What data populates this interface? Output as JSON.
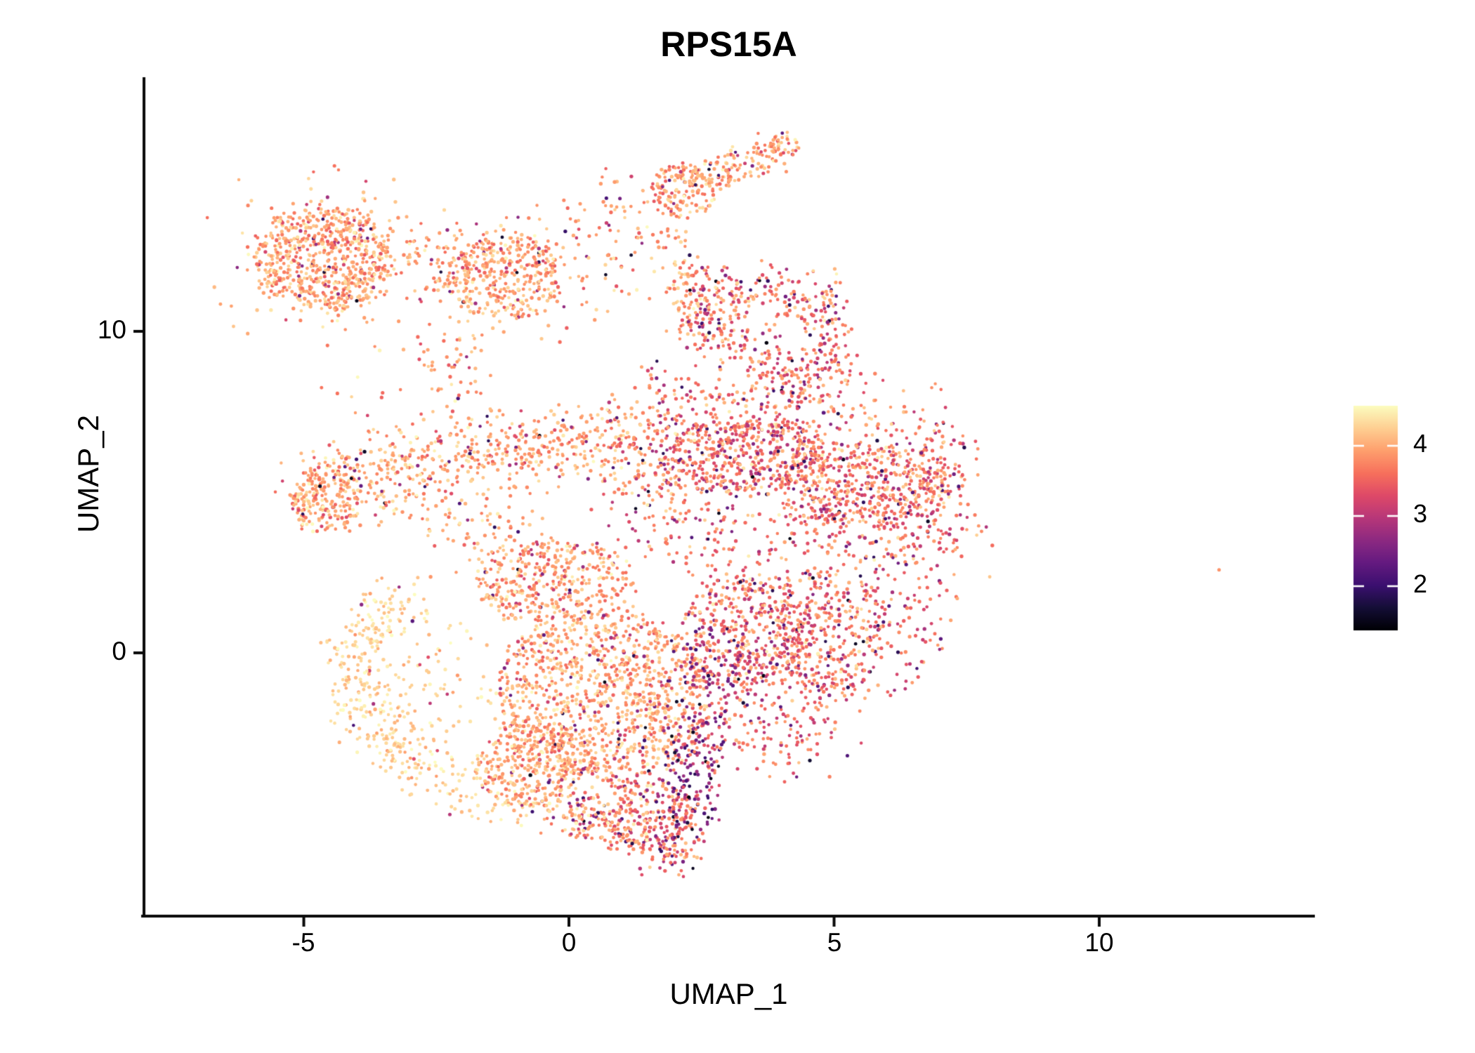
{
  "title": "RPS15A",
  "axes": {
    "x_label": "UMAP_1",
    "y_label": "UMAP_2",
    "x_ticks": [
      -5,
      0,
      5,
      10
    ],
    "x_tick_labels": [
      "-5",
      "0",
      "5",
      "10"
    ],
    "y_ticks": [
      10,
      0
    ],
    "y_tick_labels": [
      "10",
      "0"
    ],
    "xlim": [
      -8.0,
      14.0
    ],
    "ylim": [
      -8.2,
      17.9
    ]
  },
  "colorbar": {
    "ticks": [
      4,
      3,
      2
    ],
    "tick_labels": [
      "4",
      "3",
      "2"
    ],
    "vmin": 1.37,
    "vmax": 4.57,
    "palette": "magma",
    "stops": [
      "#000004",
      "#140e36",
      "#3b0f70",
      "#641a80",
      "#8c2981",
      "#b73779",
      "#de4968",
      "#f7705c",
      "#fe9f6d",
      "#fecf92",
      "#fcfdbf"
    ]
  },
  "chart_data": {
    "type": "scatter",
    "title": "RPS15A",
    "xlabel": "UMAP_1",
    "ylabel": "UMAP_2",
    "xlim": [
      -8.0,
      14.0
    ],
    "ylim": [
      -8.2,
      17.9
    ],
    "legend_position": "right",
    "grid": false,
    "point_radius_px": 2.35,
    "expression_color_range": [
      1.37,
      4.57
    ],
    "value_profiles": {
      "hi": {
        "mean": 3.95,
        "sd": 0.28,
        "p_mid": 0.055,
        "p_low": 0.018,
        "p_vlow": 0.005,
        "p_hi": 0.0,
        "clip_hi": 4.55
      },
      "mid": {
        "mean": 3.7,
        "sd": 0.35,
        "p_mid": 0.17,
        "p_low": 0.05,
        "p_vlow": 0.01,
        "p_hi": 0.0,
        "clip_hi": 4.5
      },
      "pale": {
        "mean": 4.25,
        "sd": 0.18,
        "p_mid": 0.03,
        "p_low": 0.004,
        "p_vlow": 0.0,
        "p_hi": 0.0,
        "clip_hi": 4.57
      },
      "dark": {
        "mean": 2.6,
        "sd": 0.5,
        "p_mid": 0.0,
        "p_low": 0.0,
        "p_vlow": 0.04,
        "p_hi": 0.2,
        "clip_hi": 3.95
      }
    },
    "clusters": [
      {
        "name": "topleft-core",
        "shape": "disc",
        "cx": -4.61,
        "cy": 12.27,
        "rx": 1.26,
        "ry": 1.64,
        "n": 620,
        "profile": "hi"
      },
      {
        "name": "topleft-fringe",
        "shape": "gauss",
        "cx": -4.61,
        "cy": 12.27,
        "sx": 1.26,
        "sy": 1.53,
        "n": 150,
        "profile": "hi"
      },
      {
        "name": "topleft-tail",
        "shape": "gauss",
        "cx": -3.97,
        "cy": 8.08,
        "sx": 0.53,
        "sy": 1.31,
        "n": 12,
        "profile": "hi"
      },
      {
        "name": "bridge",
        "shape": "path",
        "pts": [
          [
            -2.98,
            12.55
          ],
          [
            -1.46,
            12.01
          ]
        ],
        "jx": 0.4,
        "jy": 0.66,
        "n": 100,
        "profile": "hi"
      },
      {
        "name": "midtop-core",
        "shape": "disc",
        "cx": -1.19,
        "cy": 11.68,
        "rx": 1.06,
        "ry": 1.35,
        "n": 300,
        "profile": "hi"
      },
      {
        "name": "midtop-fringe",
        "shape": "gauss",
        "cx": -1.19,
        "cy": 11.68,
        "sx": 0.93,
        "sy": 1.2,
        "n": 80,
        "profile": "hi"
      },
      {
        "name": "midtop-to-hook",
        "shape": "gauss",
        "cx": 0.93,
        "cy": 13.1,
        "sx": 0.79,
        "sy": 1.31,
        "n": 90,
        "profile": "hi"
      },
      {
        "name": "hook-lobe",
        "shape": "disc",
        "cx": 2.15,
        "cy": 14.37,
        "rx": 0.6,
        "ry": 0.87,
        "n": 150,
        "profile": "hi"
      },
      {
        "name": "hook-arm",
        "shape": "path",
        "pts": [
          [
            2.58,
            14.8
          ],
          [
            3.95,
            15.68
          ]
        ],
        "jx": 0.21,
        "jy": 0.35,
        "n": 110,
        "profile": "hi"
      },
      {
        "name": "hook-tip",
        "shape": "disc",
        "cx": 4.08,
        "cy": 15.83,
        "rx": 0.29,
        "ry": 0.39,
        "n": 35,
        "profile": "hi"
      },
      {
        "name": "hook-drip",
        "shape": "path",
        "pts": [
          [
            1.85,
            13.1
          ],
          [
            2.32,
            10.04
          ]
        ],
        "jx": 0.24,
        "jy": 0.39,
        "n": 50,
        "profile": "hi"
      },
      {
        "name": "drip-pool",
        "shape": "gauss",
        "cx": 2.65,
        "cy": 10.37,
        "sx": 0.46,
        "sy": 0.55,
        "n": 40,
        "profile": "hi"
      },
      {
        "name": "loop-top",
        "shape": "path",
        "pts": [
          [
            2.58,
            11.46
          ],
          [
            4.83,
            11.03
          ]
        ],
        "jx": 0.29,
        "jy": 0.48,
        "n": 140,
        "profile": "mid"
      },
      {
        "name": "loop-right",
        "shape": "path",
        "pts": [
          [
            4.83,
            11.03
          ],
          [
            5.03,
            8.95
          ]
        ],
        "jx": 0.26,
        "jy": 0.44,
        "n": 90,
        "profile": "mid"
      },
      {
        "name": "loop-bottom",
        "shape": "path",
        "pts": [
          [
            2.52,
            10.04
          ],
          [
            4.77,
            8.41
          ]
        ],
        "jx": 0.29,
        "jy": 0.48,
        "n": 130,
        "profile": "mid"
      },
      {
        "name": "loop-left",
        "shape": "path",
        "pts": [
          [
            2.38,
            11.57
          ],
          [
            2.52,
            9.83
          ]
        ],
        "jx": 0.24,
        "jy": 0.39,
        "n": 60,
        "profile": "mid"
      },
      {
        "name": "loop-neck",
        "shape": "gauss",
        "cx": 4.11,
        "cy": 8.08,
        "sx": 0.93,
        "sy": 0.66,
        "n": 110,
        "profile": "mid"
      },
      {
        "name": "mid-band-left",
        "shape": "disc",
        "cx": 3.31,
        "cy": 6.11,
        "rx": 1.59,
        "ry": 1.2,
        "n": 420,
        "profile": "mid"
      },
      {
        "name": "mid-band-right",
        "shape": "disc",
        "cx": 5.56,
        "cy": 5.24,
        "rx": 1.59,
        "ry": 1.31,
        "n": 450,
        "profile": "mid"
      },
      {
        "name": "mid-band-edge",
        "shape": "gauss",
        "cx": 6.75,
        "cy": 5.24,
        "sx": 0.53,
        "sy": 1.2,
        "n": 160,
        "profile": "mid"
      },
      {
        "name": "mid-band-lower",
        "shape": "gauss",
        "cx": 4.5,
        "cy": 3.71,
        "sx": 1.85,
        "sy": 0.87,
        "n": 220,
        "profile": "mid"
      },
      {
        "name": "mid-band-upper",
        "shape": "gauss",
        "cx": 3.84,
        "cy": 7.21,
        "sx": 1.72,
        "sy": 0.76,
        "n": 180,
        "profile": "mid"
      },
      {
        "name": "left-band-a",
        "shape": "path",
        "pts": [
          [
            -4.83,
            5.02
          ],
          [
            -1.99,
            6.11
          ]
        ],
        "jx": 0.48,
        "jy": 0.79,
        "n": 330,
        "profile": "hi"
      },
      {
        "name": "left-band-b",
        "shape": "path",
        "pts": [
          [
            -1.99,
            6.11
          ],
          [
            1.13,
            6.66
          ]
        ],
        "jx": 0.42,
        "jy": 0.7,
        "n": 300,
        "profile": "hi"
      },
      {
        "name": "left-band-tip",
        "shape": "disc",
        "cx": -4.9,
        "cy": 4.8,
        "rx": 0.4,
        "ry": 0.92,
        "n": 60,
        "profile": "hi"
      },
      {
        "name": "left-band-knot",
        "shape": "disc",
        "cx": -4.5,
        "cy": 4.69,
        "rx": 0.66,
        "ry": 0.83,
        "n": 90,
        "profile": "hi"
      },
      {
        "name": "midtop-stem",
        "shape": "gauss",
        "cx": -2.12,
        "cy": 8.95,
        "sx": 0.4,
        "sy": 0.98,
        "n": 60,
        "profile": "hi"
      },
      {
        "name": "band-join",
        "shape": "gauss",
        "cx": 1.85,
        "cy": 7.42,
        "sx": 0.6,
        "sy": 0.87,
        "n": 90,
        "profile": "mid"
      },
      {
        "name": "core-upper-left",
        "shape": "disc",
        "cx": -0.26,
        "cy": 2.18,
        "rx": 1.46,
        "ry": 1.31,
        "n": 380,
        "profile": "hi"
      },
      {
        "name": "core-center",
        "shape": "disc",
        "cx": 0.66,
        "cy": -1.31,
        "rx": 1.99,
        "ry": 2.62,
        "n": 1100,
        "profile": "hi"
      },
      {
        "name": "core-left-lower",
        "shape": "disc",
        "cx": -0.66,
        "cy": -3.49,
        "rx": 1.06,
        "ry": 1.31,
        "n": 300,
        "profile": "hi"
      },
      {
        "name": "core-bottom",
        "shape": "disc",
        "cx": 1.19,
        "cy": -5.02,
        "rx": 1.19,
        "ry": 1.09,
        "n": 280,
        "profile": "mid"
      },
      {
        "name": "core-bottom-tip",
        "shape": "gauss",
        "cx": 1.92,
        "cy": -6.22,
        "sx": 0.33,
        "sy": 0.39,
        "n": 60,
        "profile": "mid"
      },
      {
        "name": "core-right-mid",
        "shape": "disc",
        "cx": 3.31,
        "cy": 0.66,
        "rx": 1.19,
        "ry": 1.75,
        "n": 420,
        "profile": "mid"
      },
      {
        "name": "core-right-lobe",
        "shape": "disc",
        "cx": 4.9,
        "cy": 0.66,
        "rx": 1.06,
        "ry": 1.97,
        "n": 350,
        "profile": "mid"
      },
      {
        "name": "core-right-taper",
        "shape": "gauss",
        "cx": 4.11,
        "cy": -2.18,
        "sx": 0.79,
        "sy": 0.98,
        "n": 160,
        "profile": "mid"
      },
      {
        "name": "core-right-fringe",
        "shape": "gauss",
        "cx": 6.36,
        "cy": 1.75,
        "sx": 0.53,
        "sy": 1.75,
        "n": 120,
        "profile": "mid"
      },
      {
        "name": "core-neck",
        "shape": "gauss",
        "cx": 1.85,
        "cy": 5.02,
        "sx": 0.79,
        "sy": 1.09,
        "n": 150,
        "profile": "mid"
      },
      {
        "name": "core-gap-fill",
        "shape": "gauss",
        "cx": -1.46,
        "cy": 3.71,
        "sx": 0.66,
        "sy": 0.66,
        "n": 80,
        "profile": "hi"
      },
      {
        "name": "pale-crescent",
        "shape": "path",
        "pts": [
          [
            -3.11,
            1.86
          ],
          [
            -4.17,
            0.11
          ],
          [
            -3.77,
            -2.29
          ],
          [
            -2.38,
            -3.82
          ],
          [
            -0.86,
            -4.8
          ]
        ],
        "jx": 0.34,
        "jy": 0.57,
        "n": 380,
        "profile": "pale"
      },
      {
        "name": "pale-inner",
        "shape": "gauss",
        "cx": -2.78,
        "cy": -1.09,
        "sx": 0.73,
        "sy": 1.2,
        "n": 90,
        "profile": "pale"
      },
      {
        "name": "crescent-tail",
        "shape": "path",
        "pts": [
          [
            -0.86,
            -4.8
          ],
          [
            1.85,
            -6.0
          ]
        ],
        "jx": 0.24,
        "jy": 0.39,
        "n": 90,
        "profile": "hi"
      },
      {
        "name": "dark-streak",
        "shape": "path",
        "pts": [
          [
            2.52,
            -1.75
          ],
          [
            2.19,
            -5.46
          ]
        ],
        "jx": 0.29,
        "jy": 0.48,
        "n": 200,
        "profile": "dark"
      },
      {
        "name": "dark-patch",
        "shape": "gauss",
        "cx": 2.65,
        "cy": -0.44,
        "sx": 0.4,
        "sy": 0.87,
        "n": 70,
        "profile": "dark"
      }
    ],
    "outlier_point": {
      "x": 12.26,
      "y": 2.58,
      "value": 3.85
    }
  }
}
